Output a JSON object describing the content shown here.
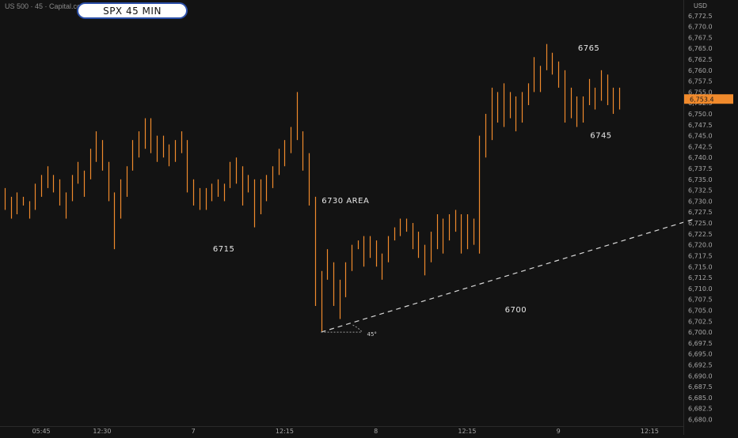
{
  "header": {
    "symbol_line": "US 500 · 45 · Capital.com",
    "title_badge": "SPX 45 MIN",
    "currency": "USD"
  },
  "colors": {
    "background": "#131313",
    "bar": "#f08a2c",
    "price_tag": "#f08a2c",
    "annotation_text": "#e8e8e8",
    "axis_text": "#a8a8a8",
    "trendline": "#d8d8d8"
  },
  "chart_data": {
    "type": "bar",
    "ylim": [
      6679,
      6775
    ],
    "y_ticks": [
      6680,
      6682.5,
      6685,
      6687.5,
      6690,
      6692.5,
      6695,
      6697.5,
      6700,
      6702.5,
      6705,
      6707.5,
      6710,
      6712.5,
      6715,
      6717.5,
      6720,
      6722.5,
      6725,
      6727.5,
      6730,
      6732.5,
      6735,
      6737.5,
      6740,
      6742.5,
      6745,
      6747.5,
      6750,
      6752.5,
      6755,
      6757.5,
      6760,
      6762.5,
      6765,
      6767.5,
      6770,
      6772.5
    ],
    "y_tick_labels": [
      "6,680.0",
      "6,682.5",
      "6,685.0",
      "6,687.5",
      "6,690.0",
      "6,692.5",
      "6,695.0",
      "6,697.5",
      "6,700.0",
      "6,702.5",
      "6,705.0",
      "6,707.5",
      "6,710.0",
      "6,712.5",
      "6,715.0",
      "6,717.5",
      "6,720.0",
      "6,722.5",
      "6,725.0",
      "6,727.5",
      "6,730.0",
      "6,732.5",
      "6,735.0",
      "6,737.5",
      "6,740.0",
      "6,742.5",
      "6,745.0",
      "6,747.5",
      "6,750.0",
      "6,752.5",
      "6,755.0",
      "6,757.5",
      "6,760.0",
      "6,762.5",
      "6,765.0",
      "6,767.5",
      "6,770.0",
      "6,772.5"
    ],
    "x_tick_labels": [
      "05:45",
      "12:30",
      "7",
      "12:15",
      "8",
      "12:15",
      "9",
      "12:15"
    ],
    "x_tick_bar_index": [
      6,
      16,
      31,
      46,
      61,
      76,
      91,
      106
    ],
    "last_price": 6753.4,
    "last_price_label": "6,753.4",
    "bars": [
      [
        6728,
        6733
      ],
      [
        6726,
        6731
      ],
      [
        6727,
        6732
      ],
      [
        6729,
        6731
      ],
      [
        6726,
        6730
      ],
      [
        6728,
        6734
      ],
      [
        6731,
        6736
      ],
      [
        6733,
        6738
      ],
      [
        6732,
        6736
      ],
      [
        6729,
        6735
      ],
      [
        6726,
        6732
      ],
      [
        6730,
        6736
      ],
      [
        6734,
        6739
      ],
      [
        6731,
        6737
      ],
      [
        6735,
        6742
      ],
      [
        6739,
        6746
      ],
      [
        6737,
        6744
      ],
      [
        6730,
        6739
      ],
      [
        6719,
        6732
      ],
      [
        6726,
        6735
      ],
      [
        6731,
        6738
      ],
      [
        6737,
        6744
      ],
      [
        6740,
        6746
      ],
      [
        6742,
        6749
      ],
      [
        6741,
        6749
      ],
      [
        6739,
        6745
      ],
      [
        6740,
        6745
      ],
      [
        6738,
        6743
      ],
      [
        6739,
        6744
      ],
      [
        6741,
        6746
      ],
      [
        6732,
        6744
      ],
      [
        6729,
        6735
      ],
      [
        6728,
        6733
      ],
      [
        6728,
        6733
      ],
      [
        6730,
        6734
      ],
      [
        6731,
        6735
      ],
      [
        6730,
        6734
      ],
      [
        6733,
        6739
      ],
      [
        6734,
        6740
      ],
      [
        6729,
        6738
      ],
      [
        6732,
        6736
      ],
      [
        6724,
        6735
      ],
      [
        6727,
        6735
      ],
      [
        6730,
        6736
      ],
      [
        6733,
        6738
      ],
      [
        6736,
        6742
      ],
      [
        6738,
        6744
      ],
      [
        6741,
        6747
      ],
      [
        6744,
        6755
      ],
      [
        6737,
        6746
      ],
      [
        6729,
        6741
      ],
      [
        6706,
        6731
      ],
      [
        6700,
        6714
      ],
      [
        6712,
        6719
      ],
      [
        6706,
        6716
      ],
      [
        6703,
        6712
      ],
      [
        6708,
        6716
      ],
      [
        6714,
        6720
      ],
      [
        6719,
        6721
      ],
      [
        6715,
        6722
      ],
      [
        6717,
        6722
      ],
      [
        6715,
        6721
      ],
      [
        6712,
        6718
      ],
      [
        6716,
        6722
      ],
      [
        6721,
        6724
      ],
      [
        6722,
        6726
      ],
      [
        6723,
        6726
      ],
      [
        6719,
        6725
      ],
      [
        6717,
        6723
      ],
      [
        6713,
        6720
      ],
      [
        6716,
        6723
      ],
      [
        6719,
        6727
      ],
      [
        6718,
        6726
      ],
      [
        6721,
        6727
      ],
      [
        6723,
        6728
      ],
      [
        6718,
        6727
      ],
      [
        6719,
        6727
      ],
      [
        6720,
        6726
      ],
      [
        6718,
        6745
      ],
      [
        6740,
        6750
      ],
      [
        6744,
        6756
      ],
      [
        6748,
        6755
      ],
      [
        6747,
        6757
      ],
      [
        6749,
        6755
      ],
      [
        6746,
        6754
      ],
      [
        6748,
        6755
      ],
      [
        6752,
        6757
      ],
      [
        6755,
        6763
      ],
      [
        6755,
        6761
      ],
      [
        6760,
        6766
      ],
      [
        6759,
        6764
      ],
      [
        6756,
        6762
      ],
      [
        6748,
        6760
      ],
      [
        6749,
        6756
      ],
      [
        6747,
        6754
      ],
      [
        6748,
        6754
      ],
      [
        6752,
        6758
      ],
      [
        6751,
        6756
      ],
      [
        6753,
        6760
      ],
      [
        6752,
        6759
      ],
      [
        6750,
        6756
      ],
      [
        6751,
        6756
      ]
    ],
    "bar_x_start": 6,
    "bar_x_end": 782,
    "annotations": [
      {
        "text": "6765",
        "x_bar": 96,
        "y": 6764.5
      },
      {
        "text": "6745",
        "x_bar": 98,
        "y": 6744.5
      },
      {
        "text": "6730 AREA",
        "x_bar": 56,
        "y": 6729.5
      },
      {
        "text": "6715",
        "x_bar": 36,
        "y": 6718.5
      },
      {
        "text": "6700",
        "x_bar": 84,
        "y": 6704.5
      }
    ],
    "trendline": {
      "from": {
        "x_bar": 52,
        "y": 6700
      },
      "to": {
        "x_bar": 112,
        "y": 6726
      },
      "style": "dashed"
    },
    "angle_label": "45°"
  }
}
